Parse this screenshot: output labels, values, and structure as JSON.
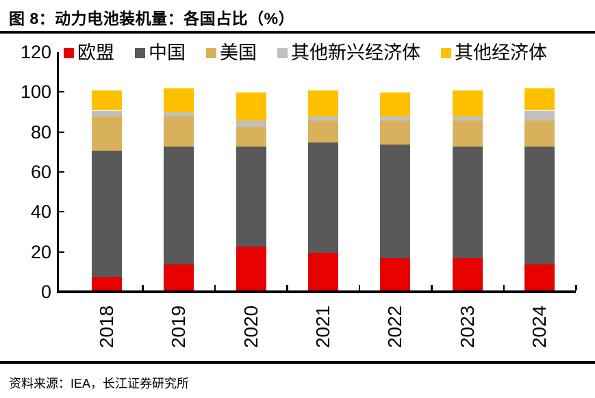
{
  "figure": {
    "title": "图 8：动力电池装机量：各国占比（%）",
    "source": "资料来源：IEA，长江证券研究所"
  },
  "chart_data": {
    "type": "bar",
    "stacked": true,
    "title": "动力电池装机量：各国占比（%）",
    "categories": [
      "2018",
      "2019",
      "2020",
      "2021",
      "2022",
      "2023",
      "2024"
    ],
    "series": [
      {
        "name": "欧盟",
        "color": "#e60000",
        "values": [
          7,
          13,
          22,
          19,
          16,
          16,
          13
        ]
      },
      {
        "name": "中国",
        "color": "#595959",
        "values": [
          63,
          59,
          50,
          55,
          57,
          56,
          59
        ]
      },
      {
        "name": "美国",
        "color": "#d9b15c",
        "values": [
          17,
          15,
          10,
          11,
          12,
          13,
          13
        ]
      },
      {
        "name": "其他新兴经济体",
        "color": "#c0c0c0",
        "values": [
          3,
          2,
          3,
          2,
          2,
          2,
          5
        ]
      },
      {
        "name": "其他经济体",
        "color": "#ffc000",
        "values": [
          10,
          12,
          14,
          13,
          12,
          13,
          11
        ]
      }
    ],
    "xlabel": "",
    "ylabel": "",
    "ylim": [
      0,
      120
    ],
    "y_ticks": [
      0,
      20,
      40,
      60,
      80,
      100,
      120
    ],
    "legend_position": "top",
    "grid": false,
    "axis_color": "#000000",
    "background_color": "#ffffff"
  }
}
